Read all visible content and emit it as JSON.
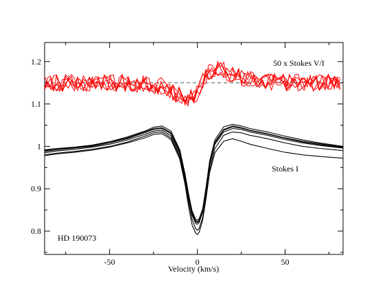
{
  "chart_data": {
    "type": "line",
    "xlabel": "Velocity (km/s)",
    "ylabel": "",
    "xlim": [
      -87,
      83
    ],
    "ylim": [
      0.745,
      1.245
    ],
    "x_ticks": [
      -50,
      0,
      50
    ],
    "x_tick_labels": [
      "-50",
      "0",
      "50"
    ],
    "y_ticks": [
      0.8,
      0.9,
      1.0,
      1.1,
      1.2
    ],
    "y_tick_labels": [
      "0.8",
      "0.9",
      "1",
      "1.1",
      "1.2"
    ],
    "grid": false,
    "legend": "none",
    "annotations": {
      "stokes_v_label": "50 x Stokes V/I",
      "stokes_i_label": "Stokes I",
      "star_label": "HD 190073"
    },
    "colors": {
      "stokes_i": "#000000",
      "stokes_v": "#ff0000",
      "reference_line": "#555555"
    },
    "reference_line_y": 1.15,
    "x": [
      -87,
      -80,
      -70,
      -60,
      -50,
      -40,
      -30,
      -25,
      -20,
      -15,
      -10,
      -7,
      -5,
      -3,
      -1,
      0,
      1,
      3,
      5,
      7,
      10,
      15,
      20,
      25,
      30,
      40,
      50,
      60,
      70,
      83
    ],
    "stokes_i_series": [
      {
        "values": [
          0.988,
          0.992,
          0.996,
          1.0,
          1.008,
          1.018,
          1.032,
          1.04,
          1.042,
          1.03,
          0.985,
          0.93,
          0.885,
          0.845,
          0.825,
          0.822,
          0.826,
          0.85,
          0.9,
          0.96,
          1.01,
          1.04,
          1.048,
          1.044,
          1.038,
          1.03,
          1.02,
          1.012,
          1.006,
          0.998
        ]
      },
      {
        "values": [
          0.992,
          0.995,
          0.998,
          1.003,
          1.011,
          1.022,
          1.036,
          1.045,
          1.048,
          1.036,
          0.992,
          0.935,
          0.888,
          0.848,
          0.828,
          0.826,
          0.829,
          0.852,
          0.905,
          0.965,
          1.015,
          1.046,
          1.052,
          1.048,
          1.042,
          1.034,
          1.024,
          1.015,
          1.008,
          1.0
        ]
      },
      {
        "values": [
          0.985,
          0.989,
          0.993,
          0.998,
          1.005,
          1.015,
          1.028,
          1.036,
          1.038,
          1.025,
          0.98,
          0.925,
          0.878,
          0.838,
          0.818,
          0.816,
          0.82,
          0.845,
          0.895,
          0.955,
          1.005,
          1.034,
          1.042,
          1.04,
          1.034,
          1.026,
          1.016,
          1.008,
          1.002,
          0.996
        ]
      },
      {
        "values": [
          0.99,
          0.994,
          0.997,
          1.002,
          1.01,
          1.02,
          1.034,
          1.042,
          1.044,
          1.032,
          0.988,
          0.932,
          0.884,
          0.842,
          0.822,
          0.82,
          0.824,
          0.848,
          0.898,
          0.958,
          1.008,
          1.038,
          1.046,
          1.043,
          1.037,
          1.029,
          1.019,
          1.01,
          1.004,
          0.997
        ]
      },
      {
        "values": [
          0.98,
          0.984,
          0.988,
          0.993,
          1.0,
          1.01,
          1.024,
          1.032,
          1.034,
          1.02,
          0.975,
          0.918,
          0.868,
          0.828,
          0.806,
          0.802,
          0.806,
          0.832,
          0.885,
          0.945,
          0.995,
          1.026,
          1.034,
          1.032,
          1.026,
          1.018,
          1.008,
          1.0,
          0.995,
          0.99
        ]
      },
      {
        "values": [
          0.978,
          0.982,
          0.986,
          0.991,
          0.998,
          1.008,
          1.02,
          1.028,
          1.03,
          1.016,
          0.97,
          0.91,
          0.858,
          0.815,
          0.795,
          0.792,
          0.797,
          0.825,
          0.878,
          0.938,
          0.985,
          1.012,
          1.018,
          1.012,
          1.005,
          0.995,
          0.986,
          0.98,
          0.976,
          0.972
        ]
      }
    ],
    "stokes_v_profile": {
      "x": [
        -87,
        -60,
        -40,
        -20,
        -15,
        -10,
        -5,
        0,
        5,
        10,
        15,
        20,
        30,
        40,
        60,
        83
      ],
      "values": [
        1.15,
        1.15,
        1.15,
        1.142,
        1.13,
        1.12,
        1.112,
        1.125,
        1.17,
        1.185,
        1.18,
        1.168,
        1.158,
        1.152,
        1.15,
        1.15
      ],
      "noise_amplitude": 0.02,
      "n_observations": 6
    }
  }
}
